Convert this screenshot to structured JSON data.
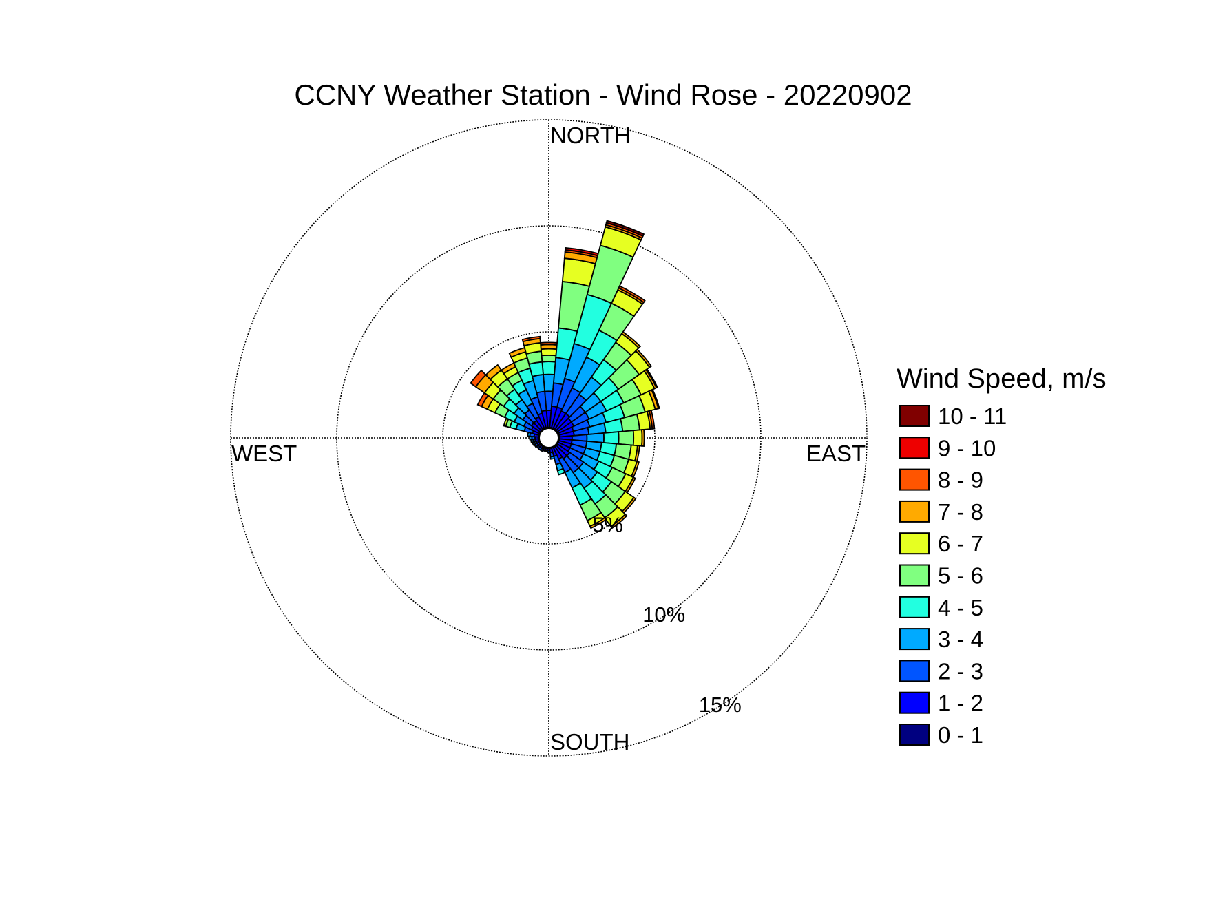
{
  "chart_data": {
    "type": "wind_rose",
    "title": "CCNY Weather Station - Wind Rose - 20220902",
    "direction_labels": {
      "north": "NORTH",
      "east": "EAST",
      "south": "SOUTH",
      "west": "WEST"
    },
    "rings": [
      {
        "value": 5,
        "label": "5%"
      },
      {
        "value": 10,
        "label": "10%"
      },
      {
        "value": 15,
        "label": "15%"
      }
    ],
    "rmax": 15,
    "legend": {
      "title": "Wind Speed, m/s",
      "bins": [
        {
          "label": "0 - 1",
          "color": "#000080"
        },
        {
          "label": "1 - 2",
          "color": "#0000ff"
        },
        {
          "label": "2 - 3",
          "color": "#0055ff"
        },
        {
          "label": "3 - 4",
          "color": "#00aaff"
        },
        {
          "label": "4 - 5",
          "color": "#22ffe0"
        },
        {
          "label": "5 - 6",
          "color": "#80ff80"
        },
        {
          "label": "6 - 7",
          "color": "#e6ff22"
        },
        {
          "label": "7 - 8",
          "color": "#ffaa00"
        },
        {
          "label": "8 - 9",
          "color": "#ff5500"
        },
        {
          "label": "9 - 10",
          "color": "#ee0000"
        },
        {
          "label": "10 - 11",
          "color": "#800000"
        }
      ]
    },
    "bin_width_deg": 10,
    "sectors": [
      {
        "direction_deg": 0,
        "cumulative": [
          0.5,
          1.3,
          2.2,
          3.0,
          3.6,
          3.9,
          4.2,
          4.4,
          4.5
        ]
      },
      {
        "direction_deg": 10,
        "cumulative": [
          0.5,
          1.5,
          2.6,
          3.8,
          5.2,
          7.4,
          8.5,
          8.8,
          8.9,
          9.0
        ]
      },
      {
        "direction_deg": 20,
        "cumulative": [
          0.5,
          1.5,
          2.9,
          4.6,
          7.0,
          9.4,
          10.3,
          10.4,
          10.5,
          10.5,
          10.6
        ]
      },
      {
        "direction_deg": 30,
        "cumulative": [
          0.5,
          1.4,
          2.6,
          4.2,
          5.6,
          7.0,
          7.7,
          7.8,
          7.9
        ]
      },
      {
        "direction_deg": 40,
        "cumulative": [
          0.5,
          1.4,
          2.5,
          3.5,
          4.5,
          5.5,
          6.0,
          6.1
        ]
      },
      {
        "direction_deg": 50,
        "cumulative": [
          0.5,
          1.3,
          2.1,
          3.0,
          4.0,
          5.2,
          5.8,
          5.9
        ]
      },
      {
        "direction_deg": 60,
        "cumulative": [
          0.5,
          1.3,
          2.1,
          3.0,
          3.9,
          4.8,
          5.5,
          5.6,
          5.65
        ]
      },
      {
        "direction_deg": 70,
        "cumulative": [
          0.5,
          1.2,
          2.0,
          2.8,
          3.7,
          4.7,
          5.2,
          5.35,
          5.4
        ]
      },
      {
        "direction_deg": 80,
        "cumulative": [
          0.5,
          1.2,
          1.9,
          2.7,
          3.5,
          4.3,
          4.8,
          4.9,
          5.0
        ]
      },
      {
        "direction_deg": 90,
        "cumulative": [
          0.5,
          1.1,
          1.8,
          2.6,
          3.3,
          4.0,
          4.4,
          4.5
        ]
      },
      {
        "direction_deg": 100,
        "cumulative": [
          0.5,
          1.1,
          1.8,
          2.5,
          3.2,
          3.9,
          4.2,
          4.3
        ]
      },
      {
        "direction_deg": 110,
        "cumulative": [
          0.5,
          1.1,
          1.8,
          2.5,
          3.2,
          3.9,
          4.3,
          4.4
        ]
      },
      {
        "direction_deg": 120,
        "cumulative": [
          0.5,
          1.1,
          1.8,
          2.6,
          3.3,
          4.0,
          4.4,
          4.5
        ]
      },
      {
        "direction_deg": 130,
        "cumulative": [
          0.5,
          1.2,
          2.0,
          2.8,
          3.6,
          4.4,
          4.9,
          5.0
        ]
      },
      {
        "direction_deg": 140,
        "cumulative": [
          0.5,
          1.2,
          2.0,
          2.9,
          3.8,
          4.6,
          5.1,
          5.2
        ]
      },
      {
        "direction_deg": 150,
        "cumulative": [
          0.5,
          1.1,
          1.8,
          2.6,
          3.5,
          4.3,
          4.6,
          4.7
        ]
      },
      {
        "direction_deg": 160,
        "cumulative": [
          0.5,
          0.9,
          1.3,
          1.6,
          1.8
        ]
      },
      {
        "direction_deg": 170,
        "cumulative": [
          0.5,
          0.7,
          0.9,
          1.0
        ]
      },
      {
        "direction_deg": 180,
        "cumulative": [
          0.5,
          0.6,
          0.7
        ]
      },
      {
        "direction_deg": 190,
        "cumulative": [
          0.5,
          0.6,
          0.65
        ]
      },
      {
        "direction_deg": 200,
        "cumulative": [
          0.5,
          0.6,
          0.65
        ]
      },
      {
        "direction_deg": 210,
        "cumulative": [
          0.5,
          0.6,
          0.7
        ]
      },
      {
        "direction_deg": 220,
        "cumulative": [
          0.5,
          0.6,
          0.7
        ]
      },
      {
        "direction_deg": 230,
        "cumulative": [
          0.5,
          0.6,
          0.7
        ]
      },
      {
        "direction_deg": 240,
        "cumulative": [
          0.5,
          0.6,
          0.75
        ]
      },
      {
        "direction_deg": 250,
        "cumulative": [
          0.5,
          0.6,
          0.7,
          0.8
        ]
      },
      {
        "direction_deg": 260,
        "cumulative": [
          0.5,
          0.65,
          0.75,
          0.85
        ]
      },
      {
        "direction_deg": 270,
        "cumulative": [
          0.5,
          0.65,
          0.8,
          0.9
        ]
      },
      {
        "direction_deg": 280,
        "cumulative": [
          0.5,
          0.7,
          0.9,
          1.0
        ]
      },
      {
        "direction_deg": 290,
        "cumulative": [
          0.5,
          0.8,
          1.2,
          1.6,
          1.9,
          2.1,
          2.2
        ]
      },
      {
        "direction_deg": 300,
        "cumulative": [
          0.5,
          0.9,
          1.3,
          1.8,
          2.3,
          2.8,
          3.2,
          3.5,
          3.7
        ]
      },
      {
        "direction_deg": 310,
        "cumulative": [
          0.5,
          1.0,
          1.5,
          2.0,
          2.6,
          3.2,
          3.7,
          4.2,
          4.5
        ]
      },
      {
        "direction_deg": 320,
        "cumulative": [
          0.5,
          1.0,
          1.6,
          2.2,
          2.8,
          3.4,
          3.9,
          4.2
        ]
      },
      {
        "direction_deg": 330,
        "cumulative": [
          0.5,
          1.1,
          1.8,
          2.5,
          3.0,
          3.4,
          3.7,
          3.9
        ]
      },
      {
        "direction_deg": 340,
        "cumulative": [
          0.5,
          1.2,
          2.0,
          2.8,
          3.4,
          3.9,
          4.2,
          4.4
        ]
      },
      {
        "direction_deg": 350,
        "cumulative": [
          0.5,
          1.3,
          2.2,
          3.0,
          3.6,
          4.1,
          4.5,
          4.7,
          4.8
        ]
      }
    ]
  }
}
